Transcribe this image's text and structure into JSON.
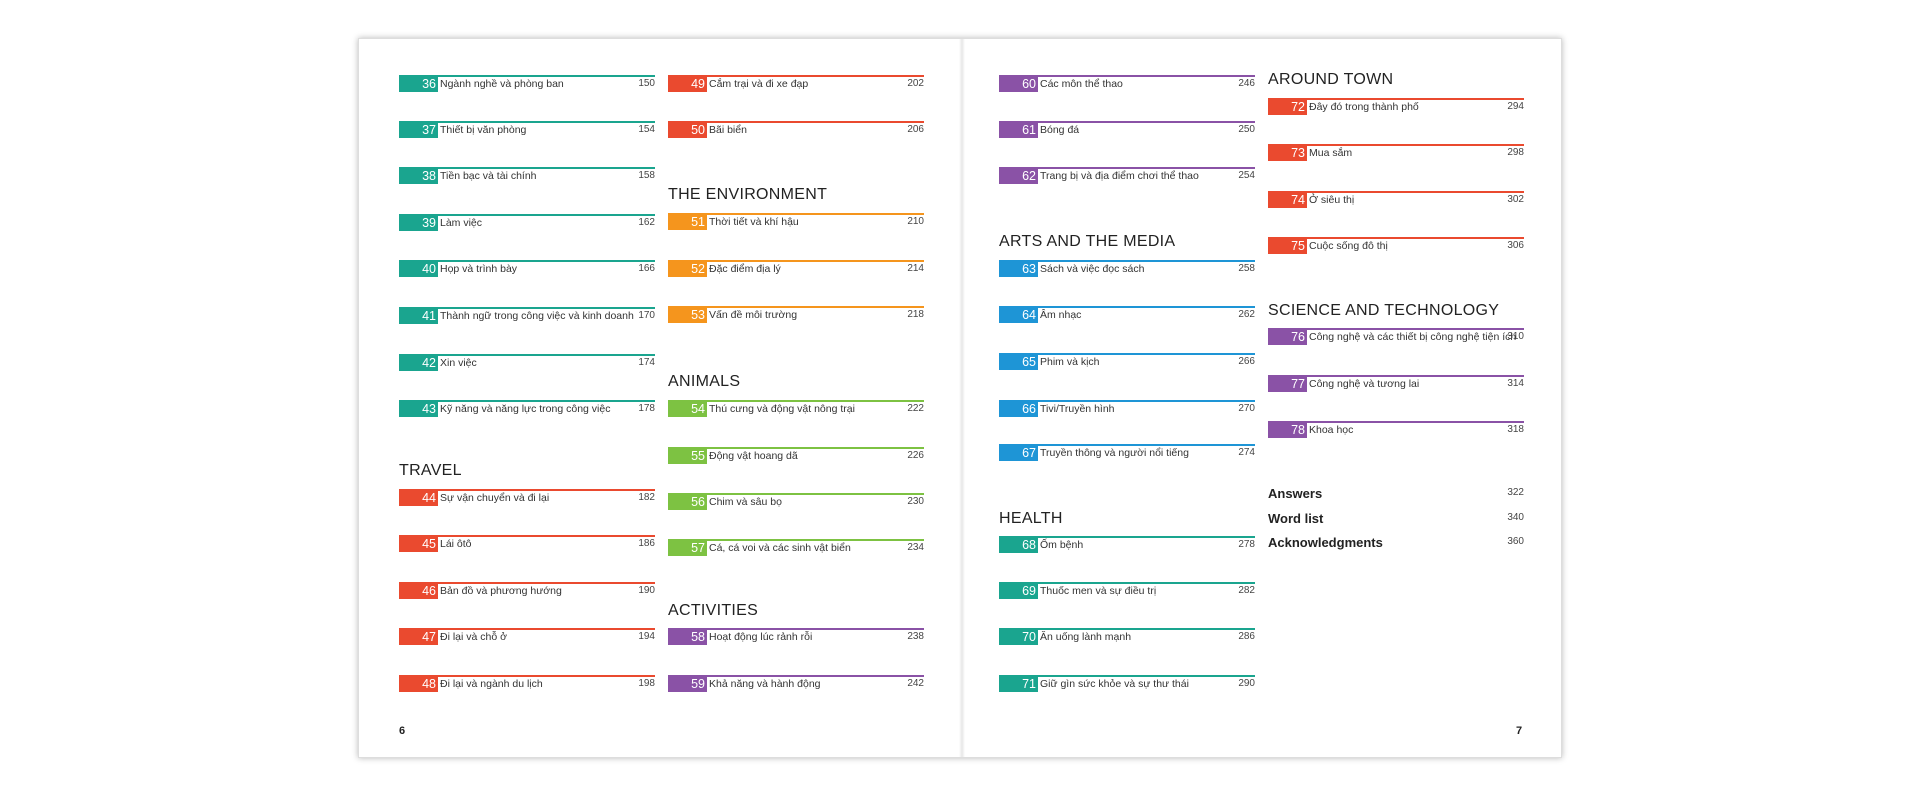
{
  "colors": {
    "teal": "#1aa58f",
    "red": "#ea4a2f",
    "orange": "#f5951d",
    "green": "#7dc242",
    "purple": "#8a52a6",
    "blue": "#1e95d6"
  },
  "folios": {
    "left": "6",
    "right": "7"
  },
  "sections": {
    "travel": "TRAVEL",
    "environment": "THE ENVIRONMENT",
    "animals": "ANIMALS",
    "activities": "ACTIVITIES",
    "arts": "ARTS AND THE MEDIA",
    "health": "HEALTH",
    "around_town": "AROUND TOWN",
    "science": "SCIENCE AND TECHNOLOGY"
  },
  "entries": [
    {
      "num": "36",
      "title": "Ngành nghề và phòng ban",
      "page": "150",
      "color": "teal"
    },
    {
      "num": "37",
      "title": "Thiết bị văn phòng",
      "page": "154",
      "color": "teal"
    },
    {
      "num": "38",
      "title": "Tiền bạc và tài chính",
      "page": "158",
      "color": "teal"
    },
    {
      "num": "39",
      "title": "Làm việc",
      "page": "162",
      "color": "teal"
    },
    {
      "num": "40",
      "title": "Họp và trình bày",
      "page": "166",
      "color": "teal"
    },
    {
      "num": "41",
      "title": "Thành ngữ trong công việc và kinh doanh",
      "page": "170",
      "color": "teal"
    },
    {
      "num": "42",
      "title": "Xin việc",
      "page": "174",
      "color": "teal"
    },
    {
      "num": "43",
      "title": "Kỹ năng và năng lực trong công việc",
      "page": "178",
      "color": "teal"
    },
    {
      "num": "44",
      "title": "Sự vận chuyển và đi lại",
      "page": "182",
      "color": "red"
    },
    {
      "num": "45",
      "title": "Lái ôtô",
      "page": "186",
      "color": "red"
    },
    {
      "num": "46",
      "title": "Bản đồ và phương hướng",
      "page": "190",
      "color": "red"
    },
    {
      "num": "47",
      "title": "Đi lại và chỗ ở",
      "page": "194",
      "color": "red"
    },
    {
      "num": "48",
      "title": "Đi lại và ngành du lịch",
      "page": "198",
      "color": "red"
    },
    {
      "num": "49",
      "title": "Cắm trại và đi xe đạp",
      "page": "202",
      "color": "red"
    },
    {
      "num": "50",
      "title": "Bãi biển",
      "page": "206",
      "color": "red"
    },
    {
      "num": "51",
      "title": "Thời tiết và khí hậu",
      "page": "210",
      "color": "orange"
    },
    {
      "num": "52",
      "title": "Đặc điểm địa lý",
      "page": "214",
      "color": "orange"
    },
    {
      "num": "53",
      "title": "Vấn đề môi trường",
      "page": "218",
      "color": "orange"
    },
    {
      "num": "54",
      "title": "Thú cưng và động vật nông trại",
      "page": "222",
      "color": "green"
    },
    {
      "num": "55",
      "title": "Động vật hoang dã",
      "page": "226",
      "color": "green"
    },
    {
      "num": "56",
      "title": "Chim và sâu bọ",
      "page": "230",
      "color": "green"
    },
    {
      "num": "57",
      "title": "Cá, cá voi và các sinh vật biển",
      "page": "234",
      "color": "green"
    },
    {
      "num": "58",
      "title": "Hoạt động lúc rảnh rỗi",
      "page": "238",
      "color": "purple"
    },
    {
      "num": "59",
      "title": "Khả năng và hành động",
      "page": "242",
      "color": "purple"
    },
    {
      "num": "60",
      "title": "Các môn thể thao",
      "page": "246",
      "color": "purple"
    },
    {
      "num": "61",
      "title": "Bóng đá",
      "page": "250",
      "color": "purple"
    },
    {
      "num": "62",
      "title": "Trang bị và địa điểm chơi thể thao",
      "page": "254",
      "color": "purple"
    },
    {
      "num": "63",
      "title": "Sách và việc đọc sách",
      "page": "258",
      "color": "blue"
    },
    {
      "num": "64",
      "title": "Âm nhạc",
      "page": "262",
      "color": "blue"
    },
    {
      "num": "65",
      "title": "Phim và kịch",
      "page": "266",
      "color": "blue"
    },
    {
      "num": "66",
      "title": "Tivi/Truyền hình",
      "page": "270",
      "color": "blue"
    },
    {
      "num": "67",
      "title": "Truyền thông và người nổi tiếng",
      "page": "274",
      "color": "blue"
    },
    {
      "num": "68",
      "title": "Ốm bệnh",
      "page": "278",
      "color": "teal"
    },
    {
      "num": "69",
      "title": "Thuốc men và sự điều trị",
      "page": "282",
      "color": "teal"
    },
    {
      "num": "70",
      "title": "Ăn uống lành mạnh",
      "page": "286",
      "color": "teal"
    },
    {
      "num": "71",
      "title": "Giữ gìn sức khỏe và sự thư thái",
      "page": "290",
      "color": "teal"
    },
    {
      "num": "72",
      "title": "Đây đó trong thành phố",
      "page": "294",
      "color": "red"
    },
    {
      "num": "73",
      "title": "Mua sắm",
      "page": "298",
      "color": "red"
    },
    {
      "num": "74",
      "title": "Ở siêu thị",
      "page": "302",
      "color": "red"
    },
    {
      "num": "75",
      "title": "Cuộc sống đô thị",
      "page": "306",
      "color": "red"
    },
    {
      "num": "76",
      "title": "Công nghệ và các thiết bị công nghệ tiện ích",
      "page": "310",
      "color": "purple"
    },
    {
      "num": "77",
      "title": "Công nghệ và tương lai",
      "page": "314",
      "color": "purple"
    },
    {
      "num": "78",
      "title": "Khoa học",
      "page": "318",
      "color": "purple"
    }
  ],
  "back_matter": [
    {
      "label": "Answers",
      "page": "322"
    },
    {
      "label": "Word list",
      "page": "340"
    },
    {
      "label": "Acknowledgments",
      "page": "360"
    }
  ]
}
